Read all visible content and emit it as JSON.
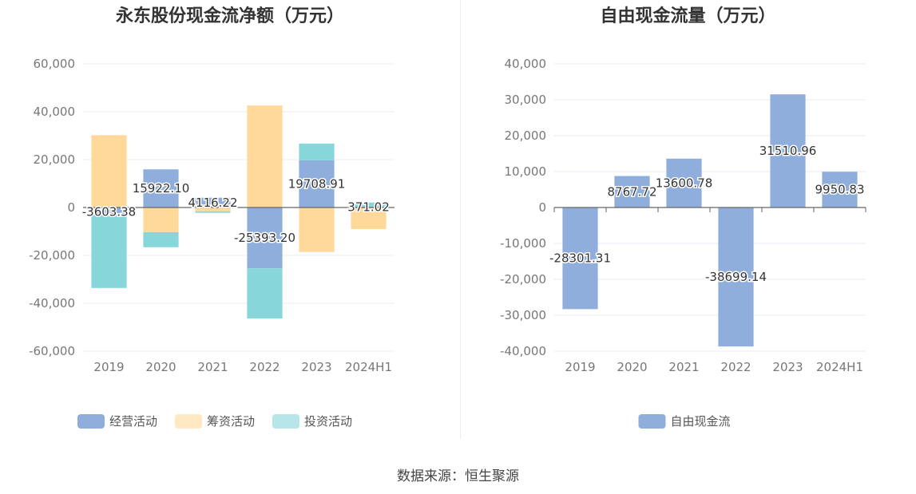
{
  "source_text": "数据来源：恒生聚源",
  "colors": {
    "operating": "#8faedb",
    "financing": "#ffd99a",
    "investing": "#86d6da",
    "free_cash_flow": "#8faedb",
    "grid": "#e8ebf3",
    "axis": "#666666"
  },
  "chart_data": [
    {
      "type": "bar",
      "stacked": true,
      "title": "永东股份现金流净额（万元）",
      "categories": [
        "2019",
        "2020",
        "2021",
        "2022",
        "2023",
        "2024H1"
      ],
      "ylim": [
        -60000,
        60000
      ],
      "yticks": [
        60000,
        40000,
        20000,
        0,
        -20000,
        -40000,
        -60000
      ],
      "ytick_labels": [
        "60,000",
        "40,000",
        "20,000",
        "0",
        "-20,000",
        "-40,000",
        "-60,000"
      ],
      "grid": true,
      "legend_position": "bottom",
      "series": [
        {
          "name": "经营活动",
          "color": "#8faedb",
          "values": [
            -3603.38,
            15922.1,
            4116.22,
            -25393.2,
            19708.91,
            371.02
          ]
        },
        {
          "name": "筹资活动",
          "color": "#ffd99a",
          "values": [
            30200,
            -10300,
            -1600,
            42600,
            -18600,
            -9000
          ]
        },
        {
          "name": "投资活动",
          "color": "#86d6da",
          "values": [
            -30000,
            -6300,
            -600,
            -21000,
            7000,
            1700
          ]
        }
      ],
      "data_labels": [
        "-3603.38",
        "15922.10",
        "4116.22",
        "-25393.20",
        "19708.91",
        "371.02"
      ]
    },
    {
      "type": "bar",
      "title": "自由现金流量（万元）",
      "categories": [
        "2019",
        "2020",
        "2021",
        "2022",
        "2023",
        "2024H1"
      ],
      "ylim": [
        -40000,
        40000
      ],
      "yticks": [
        40000,
        30000,
        20000,
        10000,
        0,
        -10000,
        -20000,
        -30000,
        -40000
      ],
      "ytick_labels": [
        "40,000",
        "30,000",
        "20,000",
        "10,000",
        "0",
        "-10,000",
        "-20,000",
        "-30,000",
        "-40,000"
      ],
      "grid": true,
      "legend_position": "bottom",
      "series": [
        {
          "name": "自由现金流",
          "color": "#8faedb",
          "values": [
            -28301.31,
            8767.72,
            13600.78,
            -38699.14,
            31510.96,
            9950.83
          ]
        }
      ],
      "data_labels": [
        "-28301.31",
        "8767.72",
        "13600.78",
        "-38699.14",
        "31510.96",
        "9950.83"
      ]
    }
  ]
}
